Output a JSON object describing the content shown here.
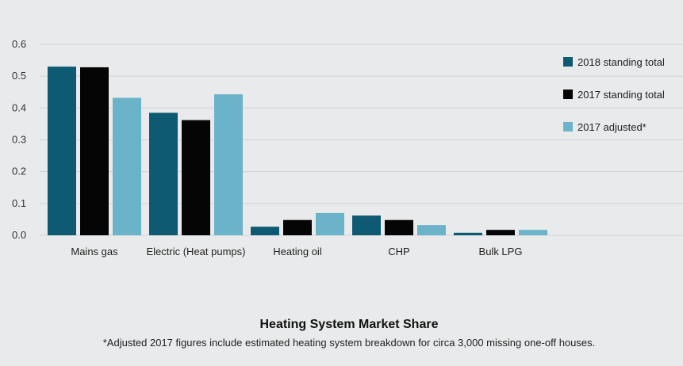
{
  "colors": {
    "background": "#e9eaeb",
    "grid": "#cfd2d4"
  },
  "chart_data": {
    "type": "bar",
    "title": "Heating System Market Share",
    "footnote": "*Adjusted 2017 figures include estimated heating system breakdown for circa 3,000 missing one-off houses.",
    "xlabel": "",
    "ylabel": "",
    "ylim": [
      0,
      0.6
    ],
    "yticks": [
      "0.0",
      "0.1",
      "0.2",
      "0.3",
      "0.4",
      "0.5",
      "0.6"
    ],
    "grid": true,
    "legend_position": "right",
    "categories": [
      "Mains gas",
      "Electric (Heat pumps)",
      "Heating oil",
      "CHP",
      "Bulk LPG"
    ],
    "series": [
      {
        "name": "2018 standing total",
        "color": "#0e5a72",
        "values": [
          0.53,
          0.385,
          0.027,
          0.062,
          0.008
        ]
      },
      {
        "name": "2017 standing total",
        "color": "#050505",
        "values": [
          0.528,
          0.362,
          0.048,
          0.048,
          0.017
        ]
      },
      {
        "name": "2017 adjusted*",
        "color": "#6bb3c9",
        "values": [
          0.432,
          0.443,
          0.07,
          0.032,
          0.017
        ]
      }
    ]
  }
}
